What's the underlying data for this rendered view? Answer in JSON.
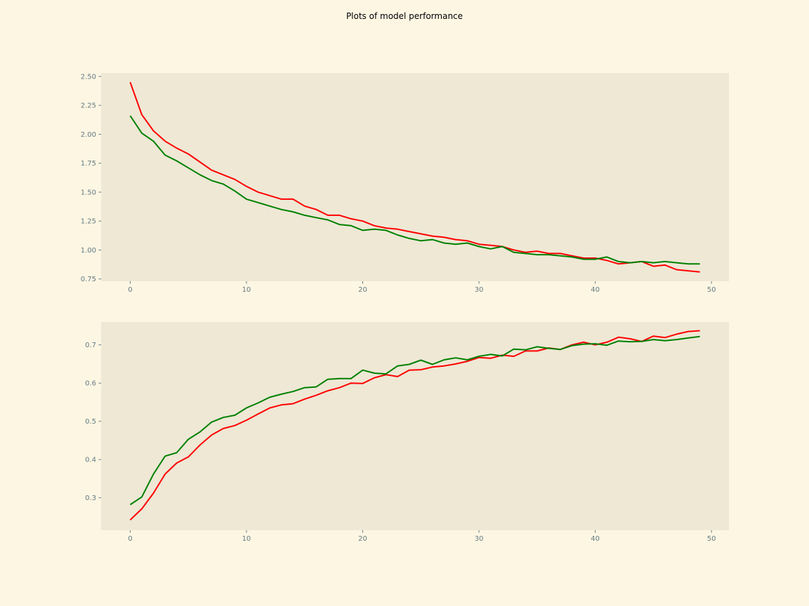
{
  "figure": {
    "title": "Plots of model performance",
    "background": "#fdf6e3",
    "axes_background": "#eee8d5",
    "tick_color": "#657b83"
  },
  "chart_data": [
    {
      "type": "line",
      "title": "",
      "xlabel": "",
      "ylabel": "",
      "grid": false,
      "xlim": [
        -2.5,
        51.5
      ],
      "ylim": [
        0.73,
        2.53
      ],
      "xticks": [
        0,
        10,
        20,
        30,
        40,
        50
      ],
      "yticks": [
        0.75,
        1.0,
        1.25,
        1.5,
        1.75,
        2.0,
        2.25,
        2.5
      ],
      "ytick_labels": [
        "0.75",
        "1.00",
        "1.25",
        "1.50",
        "1.75",
        "2.00",
        "2.25",
        "2.50"
      ],
      "x": [
        0,
        1,
        2,
        3,
        4,
        5,
        6,
        7,
        8,
        9,
        10,
        11,
        12,
        13,
        14,
        15,
        16,
        17,
        18,
        19,
        20,
        21,
        22,
        23,
        24,
        25,
        26,
        27,
        28,
        29,
        30,
        31,
        32,
        33,
        34,
        35,
        36,
        37,
        38,
        39,
        40,
        41,
        42,
        43,
        44,
        45,
        46,
        47,
        48,
        49
      ],
      "series": [
        {
          "color": "#ff0000",
          "values": [
            2.45,
            2.17,
            2.03,
            1.94,
            1.88,
            1.83,
            1.76,
            1.69,
            1.65,
            1.61,
            1.55,
            1.5,
            1.47,
            1.44,
            1.44,
            1.38,
            1.35,
            1.3,
            1.3,
            1.27,
            1.25,
            1.21,
            1.19,
            1.18,
            1.16,
            1.14,
            1.12,
            1.11,
            1.09,
            1.08,
            1.05,
            1.04,
            1.03,
            1.0,
            0.98,
            0.99,
            0.97,
            0.97,
            0.95,
            0.93,
            0.93,
            0.91,
            0.88,
            0.89,
            0.9,
            0.86,
            0.87,
            0.83,
            0.82,
            0.81
          ]
        },
        {
          "color": "#008000",
          "values": [
            2.16,
            2.01,
            1.94,
            1.82,
            1.77,
            1.71,
            1.65,
            1.6,
            1.57,
            1.51,
            1.44,
            1.41,
            1.38,
            1.35,
            1.33,
            1.3,
            1.28,
            1.26,
            1.22,
            1.21,
            1.17,
            1.18,
            1.17,
            1.13,
            1.1,
            1.08,
            1.09,
            1.06,
            1.05,
            1.06,
            1.03,
            1.01,
            1.03,
            0.98,
            0.97,
            0.96,
            0.96,
            0.95,
            0.94,
            0.92,
            0.92,
            0.94,
            0.9,
            0.89,
            0.9,
            0.89,
            0.9,
            0.89,
            0.88,
            0.88
          ]
        }
      ]
    },
    {
      "type": "line",
      "title": "",
      "xlabel": "",
      "ylabel": "",
      "grid": false,
      "xlim": [
        -2.5,
        51.5
      ],
      "ylim": [
        0.215,
        0.76
      ],
      "xticks": [
        0,
        10,
        20,
        30,
        40,
        50
      ],
      "yticks": [
        0.3,
        0.4,
        0.5,
        0.6,
        0.7
      ],
      "ytick_labels": [
        "0.3",
        "0.4",
        "0.5",
        "0.6",
        "0.7"
      ],
      "x": [
        0,
        1,
        2,
        3,
        4,
        5,
        6,
        7,
        8,
        9,
        10,
        11,
        12,
        13,
        14,
        15,
        16,
        17,
        18,
        19,
        20,
        21,
        22,
        23,
        24,
        25,
        26,
        27,
        28,
        29,
        30,
        31,
        32,
        33,
        34,
        35,
        36,
        37,
        38,
        39,
        40,
        41,
        42,
        43,
        44,
        45,
        46,
        47,
        48,
        49
      ],
      "series": [
        {
          "color": "#ff0000",
          "values": [
            0.242,
            0.271,
            0.312,
            0.362,
            0.391,
            0.407,
            0.438,
            0.464,
            0.481,
            0.489,
            0.503,
            0.519,
            0.535,
            0.543,
            0.546,
            0.558,
            0.568,
            0.58,
            0.588,
            0.6,
            0.599,
            0.614,
            0.622,
            0.617,
            0.634,
            0.635,
            0.642,
            0.645,
            0.65,
            0.657,
            0.667,
            0.665,
            0.673,
            0.67,
            0.684,
            0.684,
            0.692,
            0.688,
            0.7,
            0.707,
            0.7,
            0.707,
            0.72,
            0.716,
            0.709,
            0.723,
            0.719,
            0.728,
            0.735,
            0.737
          ]
        },
        {
          "color": "#008000",
          "values": [
            0.282,
            0.302,
            0.362,
            0.409,
            0.418,
            0.453,
            0.472,
            0.498,
            0.51,
            0.516,
            0.535,
            0.548,
            0.563,
            0.571,
            0.578,
            0.588,
            0.59,
            0.61,
            0.612,
            0.612,
            0.634,
            0.626,
            0.624,
            0.645,
            0.649,
            0.66,
            0.649,
            0.661,
            0.666,
            0.661,
            0.67,
            0.675,
            0.671,
            0.689,
            0.687,
            0.695,
            0.691,
            0.688,
            0.698,
            0.702,
            0.703,
            0.699,
            0.71,
            0.708,
            0.709,
            0.714,
            0.711,
            0.714,
            0.718,
            0.722
          ]
        }
      ]
    }
  ]
}
